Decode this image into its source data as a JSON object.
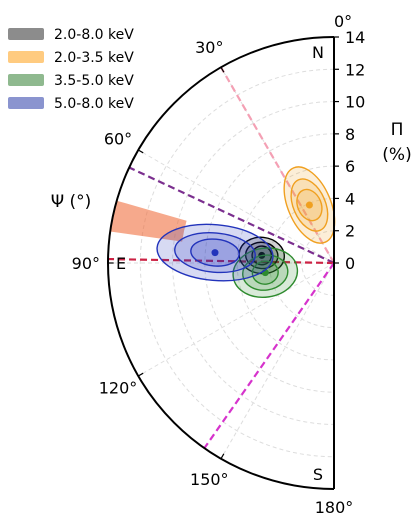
{
  "chart_data": {
    "type": "polar_contour",
    "description_units": {
      "radius": "polarization degree (%)",
      "angle": "polarization angle (degrees)"
    },
    "ylabel": "Π\n(%)",
    "xlabel": "Ψ (°)",
    "rlim": [
      0,
      14
    ],
    "r_ticks": [
      "0",
      "2",
      "4",
      "6",
      "8",
      "10",
      "12",
      "14"
    ],
    "angle_ticks": [
      {
        "angle": 0,
        "label": "0°"
      },
      {
        "angle": 30,
        "label": "30°"
      },
      {
        "angle": 60,
        "label": "60°"
      },
      {
        "angle": 90,
        "label": "90°"
      },
      {
        "angle": 120,
        "label": "120°"
      },
      {
        "angle": 150,
        "label": "150°"
      },
      {
        "angle": 180,
        "label": "180°"
      }
    ],
    "direction_labels": {
      "north": "N",
      "east": "E",
      "south": "S"
    },
    "grid": true,
    "legend": {
      "placement": "top-left",
      "entries": [
        {
          "name": "2.0-8.0 keV",
          "color": "#8c8c8c"
        },
        {
          "name": "2.0-3.5 keV",
          "color": "#ffcb80"
        },
        {
          "name": "3.5-5.0 keV",
          "color": "#8fb98f"
        },
        {
          "name": "5.0-8.0 keV",
          "color": "#8a94cf"
        }
      ]
    },
    "series": [
      {
        "name": "2.0-8.0 keV",
        "color": "#000000",
        "center": {
          "psi": 84,
          "pol": 4.5
        },
        "contours": [
          {
            "dpsi": 5,
            "dpol": 0.6
          },
          {
            "dpsi": 8,
            "dpol": 1.0
          },
          {
            "dpsi": 12,
            "dpol": 1.4
          }
        ]
      },
      {
        "name": "2.0-3.5 keV",
        "color": "#f0a020",
        "center": {
          "psi": 23,
          "pol": 3.9
        },
        "contours": [
          {
            "dpsi": 8,
            "dpol": 1.0
          },
          {
            "dpsi": 12,
            "dpol": 1.7
          },
          {
            "dpsi": 17,
            "dpol": 2.5
          }
        ]
      },
      {
        "name": "3.5-5.0 keV",
        "color": "#2e8b2e",
        "center": {
          "psi": 98,
          "pol": 4.3
        },
        "contours": [
          {
            "dpsi": 7,
            "dpol": 0.8
          },
          {
            "dpsi": 12,
            "dpol": 1.4
          },
          {
            "dpsi": 18,
            "dpol": 2.0
          }
        ]
      },
      {
        "name": "5.0-8.0 keV",
        "color": "#2233bb",
        "center": {
          "psi": 85,
          "pol": 7.4
        },
        "contours": [
          {
            "dpsi": 5,
            "dpol": 1.5
          },
          {
            "dpsi": 8,
            "dpol": 2.5
          },
          {
            "dpsi": 12,
            "dpol": 3.6
          }
        ]
      }
    ],
    "reference_lines": [
      {
        "angle": 30,
        "color": "#f4a0b4"
      },
      {
        "angle": 65,
        "color": "#7b2f8f"
      },
      {
        "angle": 89,
        "color": "#cc2244"
      },
      {
        "angle": 145,
        "color": "#d633cc"
      }
    ],
    "shaded_wedge": {
      "angle_min": 74,
      "angle_max": 82,
      "r_min": 9.5,
      "r_max": 14,
      "color": "#f07040"
    }
  }
}
